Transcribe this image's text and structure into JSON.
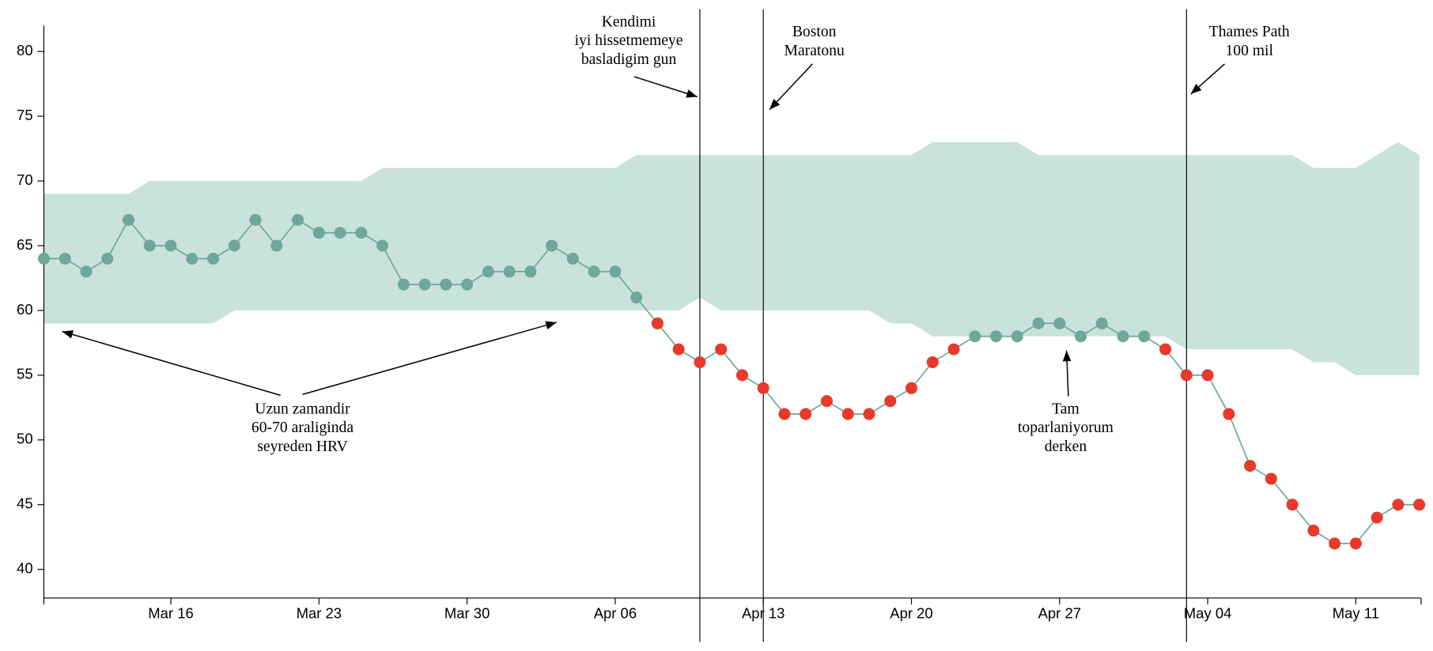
{
  "chart_data": {
    "type": "line",
    "x": [
      "Mar 10",
      "Mar 11",
      "Mar 12",
      "Mar 13",
      "Mar 14",
      "Mar 15",
      "Mar 16",
      "Mar 17",
      "Mar 18",
      "Mar 19",
      "Mar 20",
      "Mar 21",
      "Mar 22",
      "Mar 23",
      "Mar 24",
      "Mar 25",
      "Mar 26",
      "Mar 27",
      "Mar 28",
      "Mar 29",
      "Mar 30",
      "Mar 31",
      "Apr 01",
      "Apr 02",
      "Apr 03",
      "Apr 04",
      "Apr 05",
      "Apr 06",
      "Apr 07",
      "Apr 08",
      "Apr 09",
      "Apr 10",
      "Apr 11",
      "Apr 12",
      "Apr 13",
      "Apr 14",
      "Apr 15",
      "Apr 16",
      "Apr 17",
      "Apr 18",
      "Apr 19",
      "Apr 20",
      "Apr 21",
      "Apr 22",
      "Apr 23",
      "Apr 24",
      "Apr 25",
      "Apr 26",
      "Apr 27",
      "Apr 28",
      "Apr 29",
      "Apr 30",
      "May 01",
      "May 02",
      "May 03",
      "May 04",
      "May 05",
      "May 06",
      "May 07",
      "May 08",
      "May 09",
      "May 10",
      "May 11",
      "May 12",
      "May 13",
      "May 14"
    ],
    "values": [
      64,
      64,
      63,
      64,
      67,
      65,
      65,
      64,
      64,
      65,
      67,
      65,
      67,
      66,
      66,
      66,
      65,
      62,
      62,
      62,
      62,
      63,
      63,
      63,
      65,
      64,
      63,
      63,
      61,
      59,
      57,
      56,
      57,
      55,
      54,
      52,
      52,
      53,
      52,
      52,
      53,
      54,
      56,
      57,
      58,
      58,
      58,
      59,
      59,
      58,
      59,
      58,
      58,
      57,
      55,
      55,
      52,
      48,
      47,
      45,
      43,
      42,
      42,
      44,
      45,
      45
    ],
    "band": {
      "upper": [
        69,
        69,
        69,
        69,
        69,
        70,
        70,
        70,
        70,
        70,
        70,
        70,
        70,
        70,
        70,
        70,
        71,
        71,
        71,
        71,
        71,
        71,
        71,
        71,
        71,
        71,
        71,
        71,
        72,
        72,
        72,
        72,
        72,
        72,
        72,
        72,
        72,
        72,
        72,
        72,
        72,
        72,
        73,
        73,
        73,
        73,
        73,
        72,
        72,
        72,
        72,
        72,
        72,
        72,
        72,
        72,
        72,
        72,
        72,
        72,
        71,
        71,
        71,
        72,
        73,
        72
      ],
      "lower": [
        59,
        59,
        59,
        59,
        59,
        59,
        59,
        59,
        59,
        60,
        60,
        60,
        60,
        60,
        60,
        60,
        60,
        60,
        60,
        60,
        60,
        60,
        60,
        60,
        60,
        60,
        60,
        60,
        60,
        60,
        60,
        61,
        60,
        60,
        60,
        60,
        60,
        60,
        60,
        60,
        59,
        59,
        58,
        58,
        58,
        58,
        58,
        58,
        58,
        58,
        58,
        58,
        58,
        58,
        57,
        57,
        57,
        57,
        57,
        57,
        56,
        56,
        55,
        55,
        55,
        55
      ],
      "color": "#c9e2dc"
    },
    "line_color": "#6fa898",
    "colors": {
      "normal": "#6fa898",
      "low": "#e8392a"
    },
    "ylim": [
      38,
      82
    ],
    "yticks": [
      40,
      45,
      50,
      55,
      60,
      65,
      70,
      75,
      80
    ],
    "xticks": [
      "Mar 16",
      "Apr 06",
      "Mar 23",
      "Mar 30",
      "Apr 13",
      "Apr 20",
      "Apr 27",
      "May 04",
      "May 11"
    ],
    "annotations": [
      {
        "lines": [
          "Kendimi",
          "iyi hissetmemeye",
          "basladigim gun"
        ],
        "x": "Apr 10"
      },
      {
        "lines": [
          "Boston",
          "Maratonu"
        ],
        "x": "Apr 13"
      },
      {
        "lines": [
          "Thames Path",
          "100 mil"
        ],
        "x": "May 03"
      },
      {
        "lines": [
          "Uzun zamandir",
          "60-70 araliginda",
          "seyreden HRV"
        ]
      },
      {
        "lines": [
          "Tam",
          "toparlaniyorum",
          "derken"
        ]
      }
    ]
  }
}
